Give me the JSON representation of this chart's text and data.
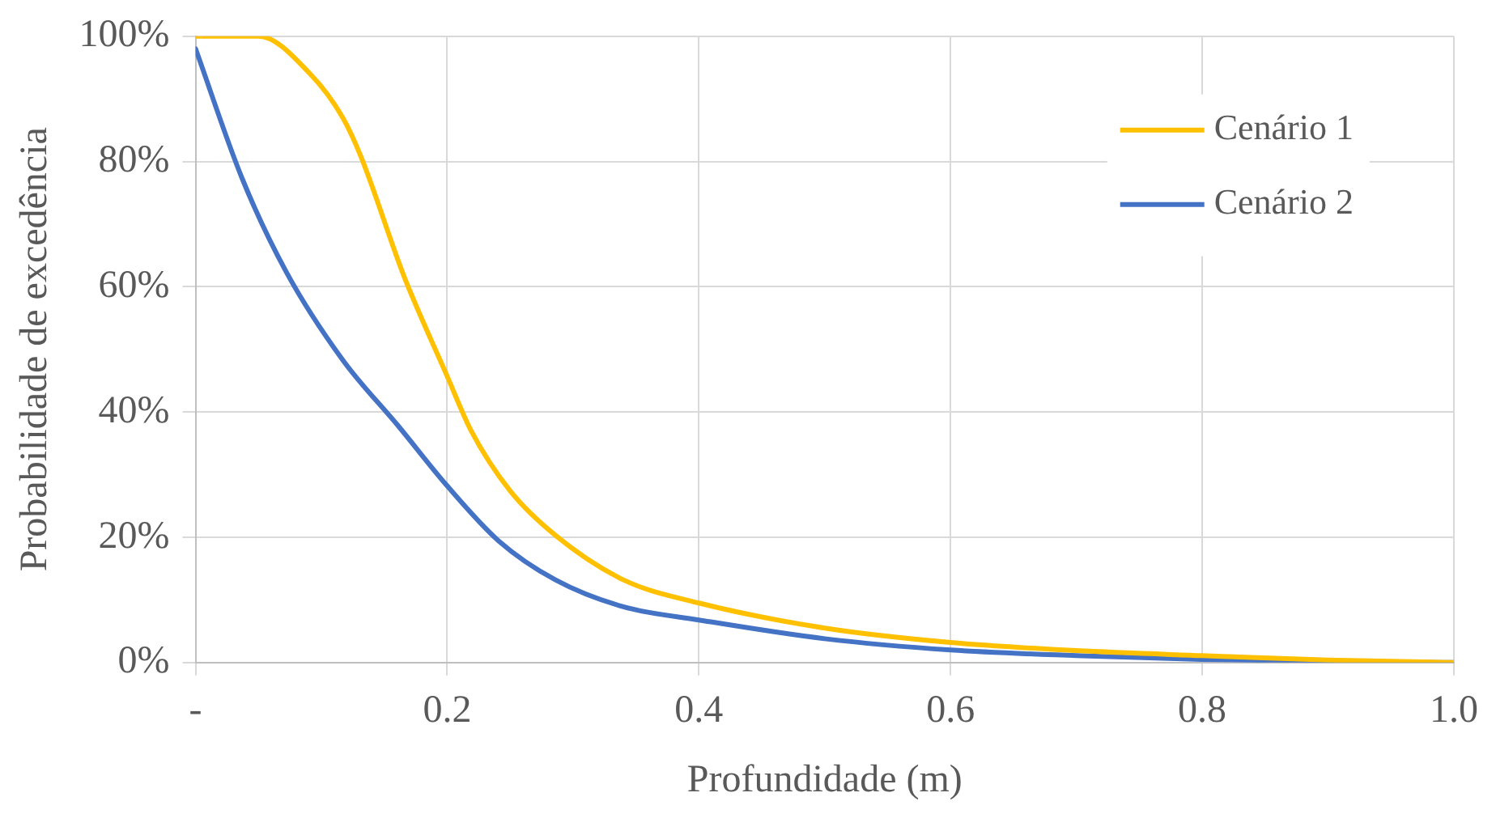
{
  "chart_data": {
    "type": "line",
    "xlabel": "Profundidade (m)",
    "ylabel": "Probabilidade de excedência",
    "xlim": [
      0,
      1
    ],
    "xticks": [
      {
        "value": 0,
        "label": "-"
      },
      0.2,
      0.4,
      0.6,
      0.8,
      {
        "value": 1,
        "label": "1.0"
      }
    ],
    "ylim": [
      0,
      100
    ],
    "yticks": [
      {
        "value": 0,
        "label": "0%"
      },
      {
        "value": 20,
        "label": "20%"
      },
      {
        "value": 40,
        "label": "40%"
      },
      {
        "value": 60,
        "label": "60%"
      },
      {
        "value": 80,
        "label": "80%"
      },
      {
        "value": 100,
        "label": "100%"
      }
    ],
    "grid": true,
    "legend": "top right",
    "marker": "none",
    "line_style": "solid",
    "series": [
      {
        "name": "Cenário 1",
        "color": "#ffc000",
        "x": [
          0,
          0.05,
          0.091,
          0.117,
          0.131,
          0.166,
          0.2,
          0.219,
          0.25,
          0.286,
          0.34,
          0.4,
          0.5,
          0.6,
          0.7,
          0.8,
          0.9,
          1.0
        ],
        "values": [
          100,
          100,
          94,
          87,
          81,
          61.5,
          45.7,
          37,
          27.4,
          20.3,
          13.2,
          9.5,
          5.5,
          3.2,
          1.9,
          1.1,
          0.4,
          0
        ]
      },
      {
        "name": "Cenário 2",
        "color": "#4472c4",
        "x": [
          0,
          0.037,
          0.072,
          0.117,
          0.161,
          0.2,
          0.241,
          0.286,
          0.34,
          0.4,
          0.5,
          0.6,
          0.7,
          0.8,
          0.9,
          1.0
        ],
        "values": [
          98,
          77.3,
          62.4,
          48.3,
          37.8,
          28.2,
          19.4,
          13.2,
          8.9,
          6.8,
          3.8,
          2,
          1.1,
          0.5,
          0.2,
          0
        ]
      }
    ]
  }
}
